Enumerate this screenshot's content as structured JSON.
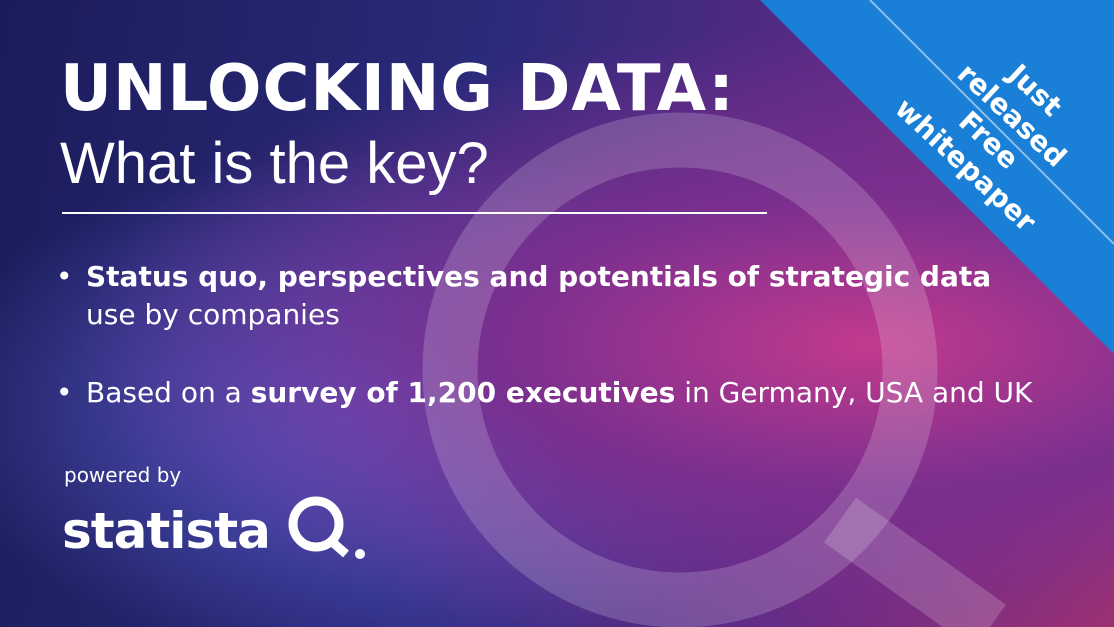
{
  "banner": {
    "title": "UNLOCKING DATA:",
    "subtitle": "What is the key?",
    "bullets": [
      {
        "segments": [
          {
            "text": "Status quo, perspectives and potentials of strategic data",
            "bold": true
          },
          {
            "text": " use by companies",
            "bold": false
          }
        ]
      },
      {
        "segments": [
          {
            "text": "Based on a ",
            "bold": false
          },
          {
            "text": "survey of 1,200 executives",
            "bold": true
          },
          {
            "text": " in Germany, USA and UK",
            "bold": false
          }
        ]
      }
    ],
    "powered_by": "powered by",
    "logo": "statista",
    "ribbon": [
      "Just released",
      "Free whitepaper"
    ]
  }
}
